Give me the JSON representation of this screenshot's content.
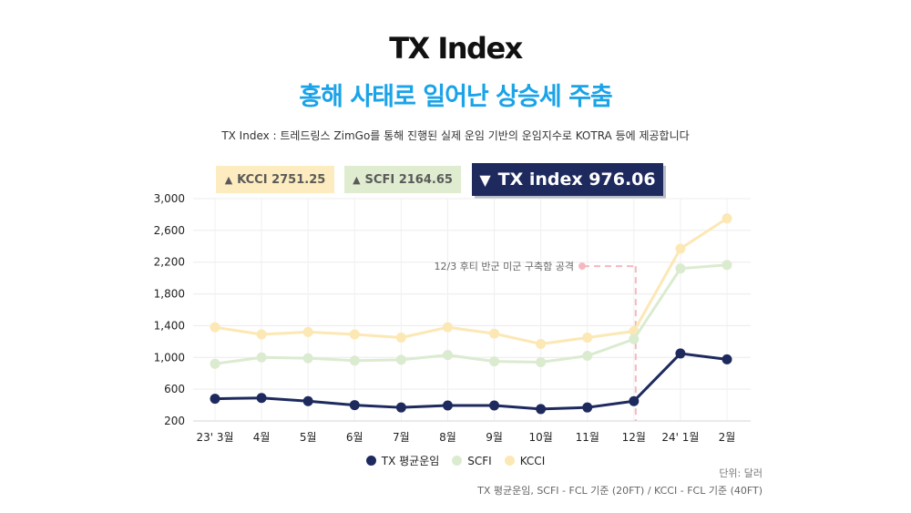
{
  "header": {
    "title": "TX Index",
    "subtitle": "홍해 사태로 일어난 상승세 주춤",
    "description": "TX Index : 트레드링스 ZimGo를 통해 진행된 실제 운임 기반의 운임지수로 KOTRA 등에 제공합니다"
  },
  "badges": {
    "kcci": {
      "arrow": "▲",
      "text": "KCCI 2751.25"
    },
    "scfi": {
      "arrow": "▲",
      "text": "SCFI 2164.65"
    },
    "tx": {
      "arrow": "▼",
      "text": "TX index 976.06"
    }
  },
  "legend": {
    "tx": "TX 평균운임",
    "scfi": "SCFI",
    "kcci": "KCCI"
  },
  "unit": "단위: 달러",
  "footnote": "TX 평균운임, SCFI - FCL 기준 (20FT) / KCCI - FCL 기준 (40FT)",
  "colors": {
    "tx": "#1e2a5e",
    "scfi": "#dbebd0",
    "kcci": "#fce8b4",
    "annotation": "#f5b8bf",
    "accent": "#1aa3e8"
  },
  "chart_data": {
    "type": "line",
    "categories": [
      "23' 3월",
      "4월",
      "5월",
      "6월",
      "7월",
      "8월",
      "9월",
      "10월",
      "11월",
      "12월",
      "24' 1월",
      "2월"
    ],
    "ylim": [
      200,
      3000
    ],
    "yticks": [
      200,
      600,
      1000,
      1400,
      1800,
      2200,
      2600,
      3000
    ],
    "ytick_labels": [
      "200",
      "600",
      "1,000",
      "1,400",
      "1,800",
      "2,200",
      "2,600",
      "3,000"
    ],
    "grid": true,
    "legend_position": "bottom",
    "series": [
      {
        "name": "KCCI",
        "key": "kcci",
        "values": [
          1380,
          1290,
          1320,
          1290,
          1250,
          1380,
          1300,
          1170,
          1250,
          1330,
          2370,
          2751.25
        ]
      },
      {
        "name": "SCFI",
        "key": "scfi",
        "values": [
          920,
          1000,
          990,
          960,
          970,
          1030,
          950,
          940,
          1020,
          1230,
          2120,
          2164.65
        ]
      },
      {
        "name": "TX 평균운임",
        "key": "tx",
        "values": [
          480,
          490,
          450,
          400,
          370,
          395,
          395,
          350,
          370,
          450,
          1050,
          976.06
        ]
      }
    ],
    "annotation": {
      "text": "12/3  후티 반군 미군 구축함 공격",
      "category_index": 9,
      "y": 2150
    }
  }
}
